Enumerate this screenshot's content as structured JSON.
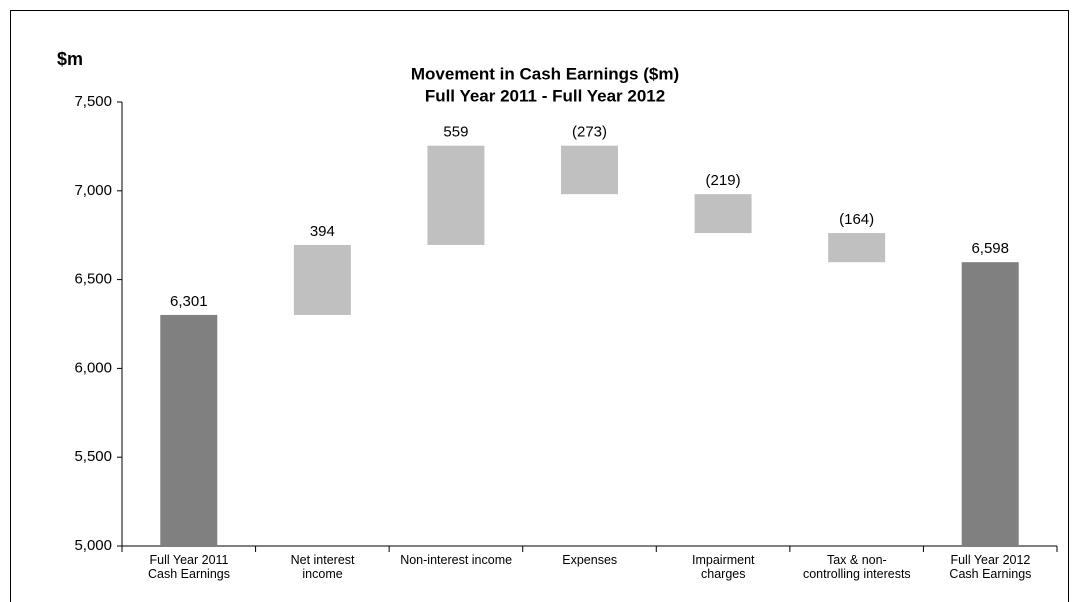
{
  "chart_data": {
    "type": "waterfall",
    "title": "Movement in Cash Earnings ($m)",
    "subtitle": "Full Year 2011 - Full Year 2012",
    "y_label": "$m",
    "categories": [
      "Full Year 2011\nCash Earnings",
      "Net interest\nincome",
      "Non-interest income",
      "Expenses",
      "Impairment\ncharges",
      "Tax & non-\ncontrolling interests",
      "Full Year 2012\nCash Earnings"
    ],
    "values": [
      6301,
      394,
      559,
      -273,
      -219,
      -164,
      6598
    ],
    "value_labels": [
      "6,301",
      "394",
      "559",
      "(273)",
      "(219)",
      "(164)",
      "6,598"
    ],
    "colors": [
      "#808080",
      "#c0c0c0",
      "#c0c0c0",
      "#c0c0c0",
      "#c0c0c0",
      "#c0c0c0",
      "#808080"
    ],
    "ylim": [
      5000,
      7500
    ],
    "yticks": [
      {
        "value": 5000,
        "label": "5,000"
      },
      {
        "value": 5500,
        "label": "5,500"
      },
      {
        "value": 6000,
        "label": "6,000"
      },
      {
        "value": 6500,
        "label": "6,500"
      },
      {
        "value": 7000,
        "label": "7,000"
      },
      {
        "value": 7500,
        "label": "7,500"
      }
    ],
    "grid": false
  }
}
